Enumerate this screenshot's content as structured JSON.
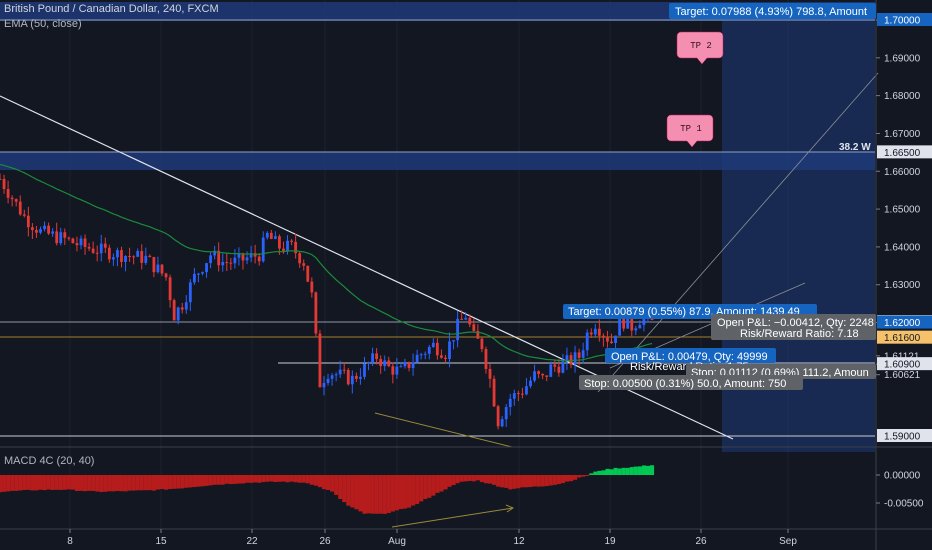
{
  "header": {
    "symbol": "British Pound / Canadian Dollar, 240, FXCM",
    "indicator": "EMA (50, close)",
    "macd_label": "MACD 4C (20, 40)"
  },
  "price_axis": {
    "ticks": [
      "1.70000",
      "1.69000",
      "1.68000",
      "1.67000",
      "1.66000",
      "1.65000",
      "1.64000",
      "1.63000",
      "1.62000",
      "1.61121",
      "1.60900",
      "1.60621"
    ],
    "badges": [
      {
        "text": "1.70000",
        "style": "blue"
      },
      {
        "text": "1.66500",
        "style": "dark"
      },
      {
        "text": "1.62012",
        "style": "dark"
      },
      {
        "text": "1.62000",
        "style": "blue"
      },
      {
        "text": "1.61600",
        "style": "orange"
      },
      {
        "text": "1.60900",
        "style": "dark"
      },
      {
        "text": "1.59000",
        "style": "dark"
      }
    ]
  },
  "macd_axis": {
    "ticks": [
      "0.00000",
      "-0.00500"
    ]
  },
  "time_axis": {
    "ticks": [
      "8",
      "15",
      "22",
      "26",
      "Aug",
      "12",
      "19",
      "26",
      "Sep"
    ]
  },
  "labels": {
    "tp2": "TP 2",
    "tp1": "TP 1",
    "fib": "38.2 W"
  },
  "positions": {
    "long_big_target": "Target: 0.07988 (4.93%) 798.8, Amount",
    "short_target": "Target: 0.00879 (0.55%) 87.9, Amount: 1439.49",
    "short_pnl": "Open P&L: −0.00412, Qty: 2248",
    "short_rr": "Risk/Reward Ratio: 7.18",
    "long_pnl": "Open P&L: 0.00479, Qty: 49999",
    "long_rr": "Risk/Reward Ratio: 1.75",
    "stop_right": "Stop: 0.01112 (0.69%) 111.2, Amoun",
    "stop_left": "Stop: 0.00500 (0.31%) 50.0, Amount: 750"
  },
  "colors": {
    "background": "#131722",
    "bull": "#2962ff",
    "bear": "#e53935",
    "ema": "#1b8b3a",
    "zone": "#1e3a78",
    "macd_pos": "#00c853",
    "macd_neg": "#b71c1c",
    "tag_fill": "#f48fb1"
  },
  "chart_data": [
    {
      "type": "candlestick",
      "title": "British Pound / Canadian Dollar, 240, FXCM",
      "ylim": [
        1.587,
        1.705
      ],
      "x_ticks": [
        "8",
        "15",
        "22",
        "26",
        "Aug",
        "12",
        "19",
        "26",
        "Sep"
      ],
      "series": [
        {
          "name": "EMA (50, close)",
          "kind": "line"
        }
      ],
      "levels": [
        1.7,
        1.665,
        1.6201,
        1.62,
        1.616,
        1.609,
        1.59
      ],
      "anchors": [
        [
          0,
          1.658
        ],
        [
          6,
          1.648
        ],
        [
          10,
          1.644
        ],
        [
          16,
          1.642
        ],
        [
          21,
          1.64
        ],
        [
          25,
          1.639
        ],
        [
          30,
          1.638
        ],
        [
          36,
          1.637
        ],
        [
          41,
          1.632
        ],
        [
          43,
          1.622
        ],
        [
          45,
          1.625
        ],
        [
          48,
          1.632
        ],
        [
          52,
          1.638
        ],
        [
          55,
          1.636
        ],
        [
          58,
          1.636
        ],
        [
          61,
          1.637
        ],
        [
          64,
          1.638
        ],
        [
          66,
          1.643
        ],
        [
          69,
          1.64
        ],
        [
          72,
          1.64
        ],
        [
          75,
          1.636
        ],
        [
          77,
          1.627
        ],
        [
          79,
          1.604
        ],
        [
          81,
          1.607
        ],
        [
          84,
          1.606
        ],
        [
          87,
          1.605
        ],
        [
          90,
          1.608
        ],
        [
          93,
          1.611
        ],
        [
          96,
          1.608
        ],
        [
          99,
          1.607
        ],
        [
          103,
          1.611
        ],
        [
          107,
          1.614
        ],
        [
          110,
          1.612
        ],
        [
          113,
          1.619
        ],
        [
          115,
          1.622
        ],
        [
          117,
          1.616
        ],
        [
          119,
          1.614
        ],
        [
          121,
          1.605
        ],
        [
          123,
          1.594
        ],
        [
          126,
          1.6
        ],
        [
          129,
          1.602
        ],
        [
          132,
          1.606
        ],
        [
          134,
          1.605
        ],
        [
          136,
          1.608
        ],
        [
          139,
          1.609
        ],
        [
          141,
          1.61
        ],
        [
          143,
          1.611
        ],
        [
          145,
          1.617
        ],
        [
          147,
          1.62
        ],
        [
          149,
          1.617
        ],
        [
          151,
          1.615
        ],
        [
          153,
          1.621
        ],
        [
          156,
          1.619
        ],
        [
          159,
          1.622
        ],
        [
          161,
          1.62
        ]
      ]
    },
    {
      "type": "bar",
      "title": "MACD 4C (20, 40)",
      "ylim": [
        -0.0075,
        0.0028
      ],
      "anchors": [
        [
          0,
          -0.003
        ],
        [
          8,
          -0.0027
        ],
        [
          16,
          -0.0026
        ],
        [
          24,
          -0.003
        ],
        [
          30,
          -0.0029
        ],
        [
          38,
          -0.0027
        ],
        [
          44,
          -0.0024
        ],
        [
          52,
          -0.0018
        ],
        [
          58,
          -0.0015
        ],
        [
          64,
          -0.0013
        ],
        [
          70,
          -0.0012
        ],
        [
          76,
          -0.0014
        ],
        [
          82,
          -0.003
        ],
        [
          86,
          -0.0055
        ],
        [
          90,
          -0.0069
        ],
        [
          94,
          -0.007
        ],
        [
          98,
          -0.0064
        ],
        [
          102,
          -0.0055
        ],
        [
          106,
          -0.004
        ],
        [
          110,
          -0.0025
        ],
        [
          114,
          -0.0012
        ],
        [
          118,
          -0.001
        ],
        [
          122,
          -0.0018
        ],
        [
          126,
          -0.0025
        ],
        [
          130,
          -0.0022
        ],
        [
          134,
          -0.002
        ],
        [
          138,
          -0.0016
        ],
        [
          142,
          -0.0008
        ],
        [
          145,
          0.0
        ],
        [
          148,
          0.0008
        ],
        [
          152,
          0.0012
        ],
        [
          156,
          0.0014
        ],
        [
          160,
          0.0017
        ],
        [
          161,
          0.0018
        ]
      ]
    }
  ]
}
